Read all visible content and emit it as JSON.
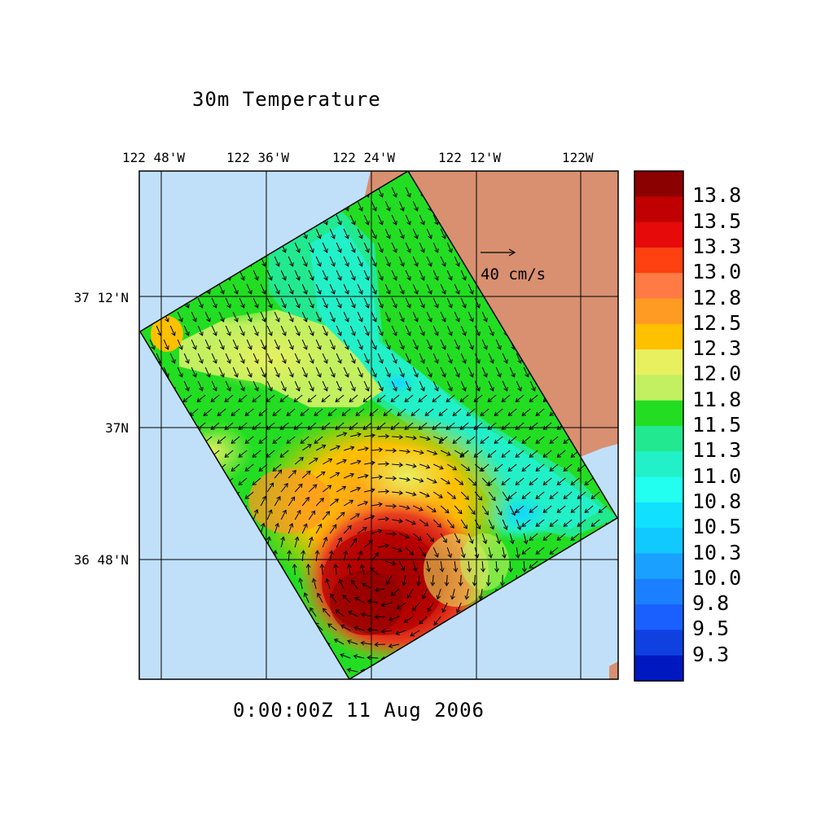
{
  "title": "30m Temperature",
  "timestamp": "0:00:00Z  11 Aug 2006",
  "lon_labels": [
    "122 48'W",
    "122 36'W",
    "122 24'W",
    "122 12'W",
    "122W"
  ],
  "lat_labels": [
    "37 12'N",
    "37N",
    "36 48'N"
  ],
  "vector_scale_label": "40 cm/s",
  "colorbar": {
    "labels": [
      "13.8",
      "13.5",
      "13.3",
      "13.0",
      "12.8",
      "12.5",
      "12.3",
      "12.0",
      "11.8",
      "11.5",
      "11.3",
      "11.0",
      "10.8",
      "10.5",
      "10.3",
      "10.0",
      "9.8",
      "9.5",
      "9.3"
    ],
    "colors": [
      "#8b0000",
      "#c00000",
      "#e60a0a",
      "#ff4010",
      "#ff7a44",
      "#ff9a22",
      "#ffc000",
      "#e8f060",
      "#c2f060",
      "#22dd22",
      "#22e890",
      "#22f0c8",
      "#22fff0",
      "#11e0ff",
      "#11c8ff",
      "#1aa0ff",
      "#1a80ff",
      "#1a60ff",
      "#1040e0",
      "#0018c0"
    ]
  },
  "colors": {
    "ocean": "#c0e0fa",
    "land": "#d89070"
  }
}
